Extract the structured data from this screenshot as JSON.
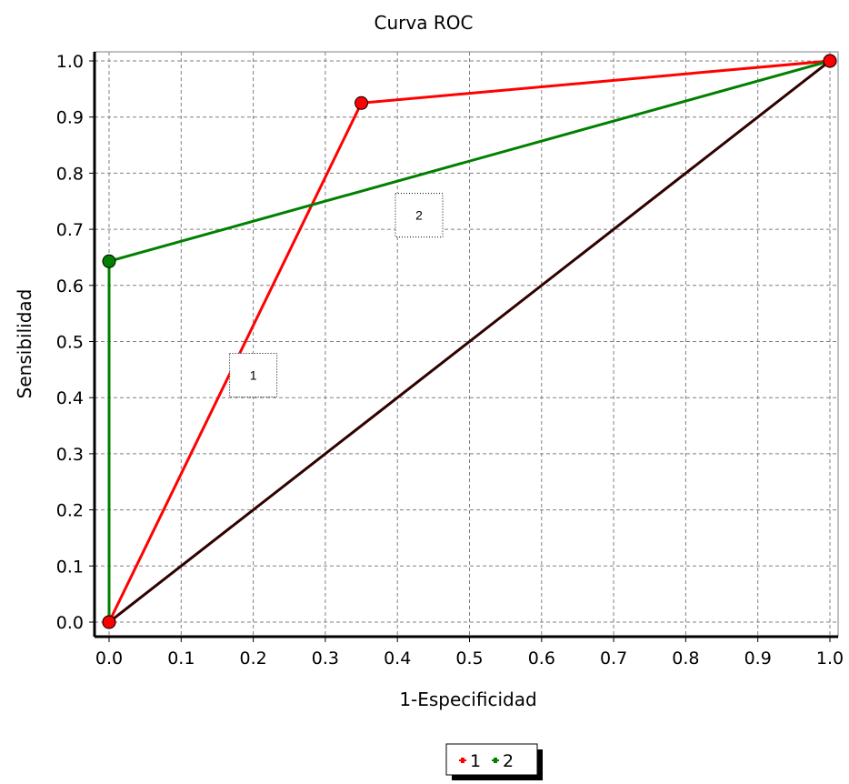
{
  "chart_data": {
    "type": "line",
    "title": "Curva ROC",
    "xlabel": "1-Especificidad",
    "ylabel": "Sensibilidad",
    "xlim": [
      0,
      1
    ],
    "ylim": [
      0,
      1
    ],
    "x_ticks": [
      "0.0",
      "0.1",
      "0.2",
      "0.3",
      "0.4",
      "0.5",
      "0.6",
      "0.7",
      "0.8",
      "0.9",
      "1.0"
    ],
    "y_ticks": [
      "0.0",
      "0.1",
      "0.2",
      "0.3",
      "0.4",
      "0.5",
      "0.6",
      "0.7",
      "0.8",
      "0.9",
      "1.0"
    ],
    "grid": true,
    "legend_position": "bottom-center",
    "series": [
      {
        "name": "1",
        "color": "#ff0000",
        "marker_color": "#ff0000",
        "x": [
          0.0,
          0.35,
          1.0
        ],
        "y": [
          0.0,
          0.925,
          1.0
        ]
      },
      {
        "name": "2",
        "color": "#008000",
        "marker_color": "#008000",
        "x": [
          0.0,
          0.0,
          1.0
        ],
        "y": [
          0.0,
          0.643,
          1.0
        ]
      }
    ],
    "reference_line": {
      "color": "#300000",
      "x": [
        0.0,
        1.0
      ],
      "y": [
        0.0,
        1.0
      ]
    },
    "annotations": [
      {
        "text": "1",
        "x": 0.2,
        "y": 0.44
      },
      {
        "text": "2",
        "x": 0.43,
        "y": 0.725
      }
    ]
  }
}
